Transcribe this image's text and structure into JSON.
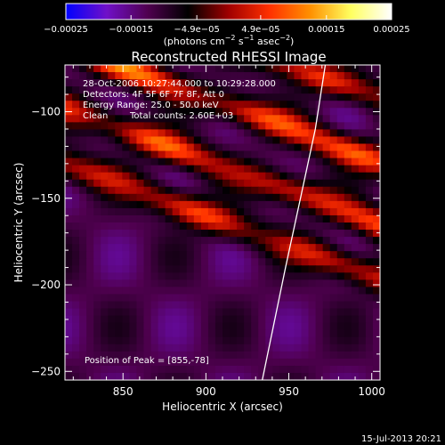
{
  "chart_data": {
    "type": "heatmap",
    "title": "Reconstructed RHESSI Image",
    "xlabel": "Heliocentric X (arcsec)",
    "ylabel": "Heliocentric Y (arcsec)",
    "xlim": [
      815,
      1005
    ],
    "ylim": [
      -255,
      -73
    ],
    "xticks": [
      850,
      900,
      950,
      1000
    ],
    "xtick_labels": [
      "850",
      "900",
      "950",
      "1000"
    ],
    "yticks": [
      -250,
      -200,
      -150,
      -100
    ],
    "ytick_labels": [
      "−250",
      "−200",
      "−150",
      "−100"
    ],
    "grid": false,
    "colorbar": {
      "placement": "top",
      "range": [
        -0.00025,
        0.00025
      ],
      "tick_values": [
        -0.00025,
        -0.00015,
        -4.9e-05,
        4.9e-05,
        0.00015,
        0.00025
      ],
      "tick_labels": [
        "−0.00025",
        "−0.00015",
        "−4.9e−05",
        "4.9e−05",
        "0.00015",
        "0.00025"
      ],
      "units_main": "(photons cm",
      "units_sup1": "−2",
      "units_mid": " s",
      "units_sup2": "−1",
      "units_mid2": " asec",
      "units_sup3": "−2",
      "units_end": ")",
      "colormap": [
        "#0000ff",
        "#7010c8",
        "#500050",
        "#000000",
        "#a00000",
        "#ff3000",
        "#ff9000",
        "#ffff60",
        "#ffffff"
      ]
    },
    "annotations": {
      "line1": "28-Oct-2006 10:27:44.000 to 10:29:28.000",
      "line2": "Detectors: 4F 5F 6F 7F 8F, Att 0",
      "line3": "Energy Range: 25.0 - 50.0 keV",
      "line4a": "Clean",
      "line4b": "Total counts: 2.60E+03",
      "peak": "Position of Peak = [855,-78]"
    },
    "limb": [
      [
        934,
        -255
      ],
      [
        948,
        -190
      ],
      [
        957,
        -150
      ],
      [
        966,
        -110
      ],
      [
        972,
        -73
      ]
    ],
    "bands": [
      {
        "slope": -0.35,
        "intercept": -25,
        "amplitude": 0.00018
      },
      {
        "slope": -0.35,
        "intercept": -55,
        "amplitude": 0.00021
      },
      {
        "slope": -0.35,
        "intercept": -92,
        "amplitude": 0.00024
      },
      {
        "slope": -0.35,
        "intercept": -128,
        "amplitude": 0.00022
      },
      {
        "slope": -0.35,
        "intercept": -160,
        "amplitude": 0.0002
      }
    ]
  },
  "footer": {
    "timestamp": "15-Jul-2013 20:21"
  }
}
